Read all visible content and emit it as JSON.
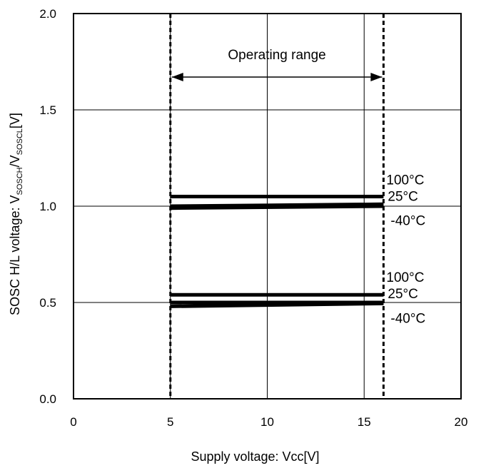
{
  "chart_data": {
    "type": "line",
    "title": "",
    "xlabel": "Supply voltage: Vcc[V]",
    "ylabel": {
      "prefix": "SOSC H/L voltage: V",
      "sub1": "SOSCH",
      "mid": "/V",
      "sub2": "SOSCL",
      "suffix": "[V]"
    },
    "xlim": [
      0,
      20
    ],
    "ylim": [
      0.0,
      2.0
    ],
    "x_ticks": [
      "0",
      "5",
      "10",
      "15",
      "20"
    ],
    "y_ticks": [
      "0.0",
      "0.5",
      "1.0",
      "1.5",
      "2.0"
    ],
    "grid": true,
    "operating_range": {
      "label": "Operating range",
      "x_start": 5,
      "x_end": 16
    },
    "series": [
      {
        "name": "100°C",
        "group": "high",
        "x": [
          5,
          16
        ],
        "y": [
          1.05,
          1.05
        ]
      },
      {
        "name": "25°C",
        "group": "high",
        "x": [
          5,
          16
        ],
        "y": [
          1.0,
          1.01
        ]
      },
      {
        "name": "-40°C",
        "group": "high",
        "x": [
          5,
          16
        ],
        "y": [
          0.99,
          1.0
        ]
      },
      {
        "name": "100°C",
        "group": "low",
        "x": [
          5,
          16
        ],
        "y": [
          0.54,
          0.54
        ]
      },
      {
        "name": "25°C",
        "group": "low",
        "x": [
          5,
          16
        ],
        "y": [
          0.5,
          0.5
        ]
      },
      {
        "name": "-40°C",
        "group": "low",
        "x": [
          5,
          16
        ],
        "y": [
          0.48,
          0.495
        ]
      }
    ],
    "colors": {
      "line": "#000000",
      "grid": "#000000",
      "background": "#ffffff"
    }
  }
}
